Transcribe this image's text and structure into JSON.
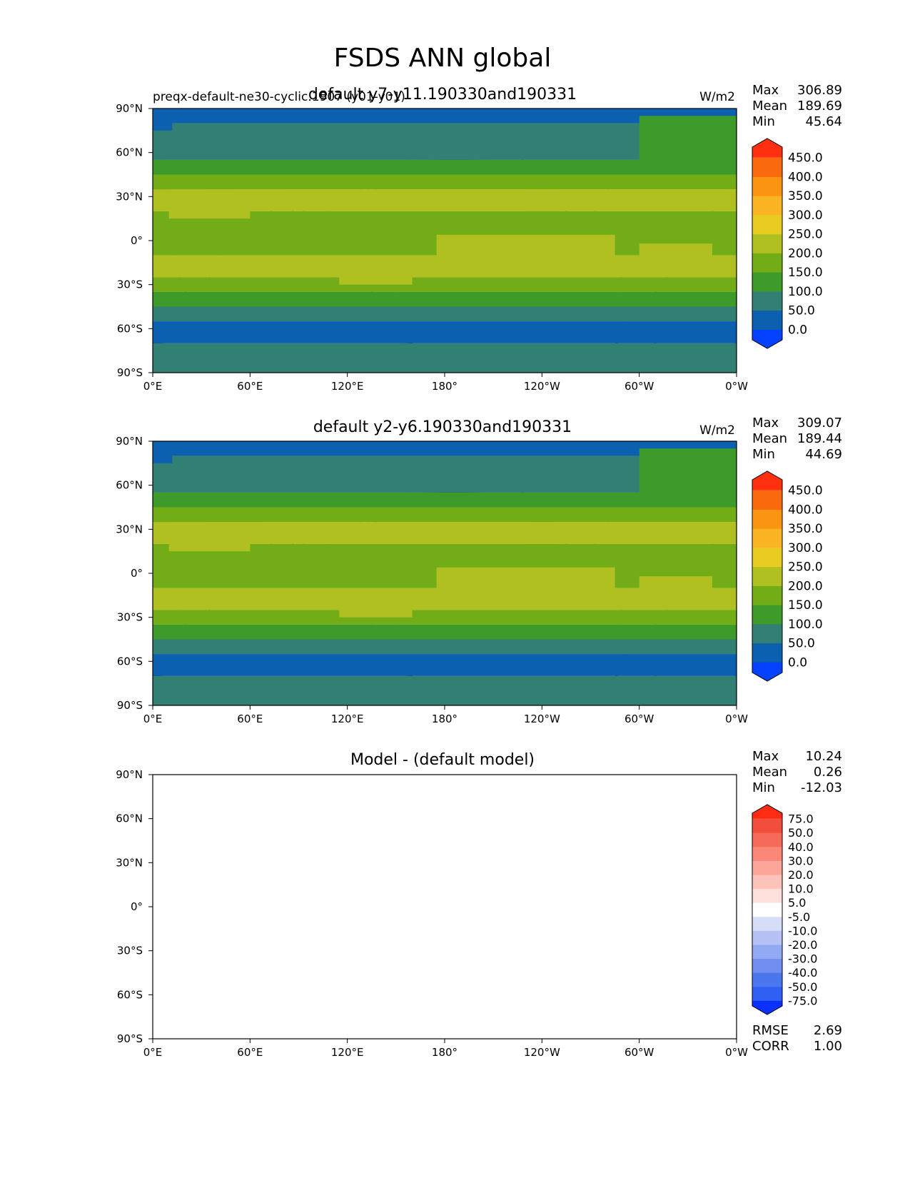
{
  "figure_title": "FSDS ANN global",
  "colors": {
    "abs_levels": [
      "#0542ff",
      "#0c60b0",
      "#327f74",
      "#3e9a2a",
      "#72ad18",
      "#b0c020",
      "#e8cc22",
      "#fbb424",
      "#fb9511",
      "#f86a0c",
      "#ff3010"
    ],
    "diff_levels": [
      "#0a31ff",
      "#2f5ff3",
      "#4a77ee",
      "#6f8ef0",
      "#93a8f2",
      "#b6c2f4",
      "#d6ddf8",
      "#ffffff",
      "#fde0dc",
      "#fdc3bb",
      "#fca699",
      "#fa8778",
      "#f66a5a",
      "#f14e3c",
      "#ff2b12"
    ]
  },
  "axes": {
    "lon_ticks": [
      "0°E",
      "60°E",
      "120°E",
      "180°",
      "120°W",
      "60°W",
      "0°W"
    ],
    "lat_ticks": [
      "90°N",
      "60°N",
      "30°N",
      "0°",
      "30°S",
      "60°S",
      "90°S"
    ]
  },
  "panels": [
    {
      "left_title": "preqx-default-ne30-cyclic.1907 (y01-y01)",
      "title": "default y7-y11.190330and190331",
      "units": "W/m2",
      "stats": [
        {
          "label": "Max",
          "value": "306.89"
        },
        {
          "label": "Mean",
          "value": "189.69"
        },
        {
          "label": "Min",
          "value": "45.64"
        }
      ],
      "colorbar_labels": [
        "450.0",
        "400.0",
        "350.0",
        "300.0",
        "250.0",
        "200.0",
        "150.0",
        "100.0",
        "50.0",
        "0.0"
      ]
    },
    {
      "title": "default y2-y6.190330and190331",
      "units": "W/m2",
      "stats": [
        {
          "label": "Max",
          "value": "309.07"
        },
        {
          "label": "Mean",
          "value": "189.44"
        },
        {
          "label": "Min",
          "value": "44.69"
        }
      ],
      "colorbar_labels": [
        "450.0",
        "400.0",
        "350.0",
        "300.0",
        "250.0",
        "200.0",
        "150.0",
        "100.0",
        "50.0",
        "0.0"
      ]
    },
    {
      "title": "Model - (default model)",
      "stats": [
        {
          "label": "Max",
          "value": "10.24"
        },
        {
          "label": "Mean",
          "value": "0.26"
        },
        {
          "label": "Min",
          "value": "-12.03"
        }
      ],
      "colorbar_labels": [
        "75.0",
        "50.0",
        "40.0",
        "30.0",
        "20.0",
        "10.0",
        "5.0",
        "-5.0",
        "-10.0",
        "-20.0",
        "-30.0",
        "-40.0",
        "-50.0",
        "-75.0"
      ],
      "extra_stats": [
        {
          "label": "RMSE",
          "value": "2.69"
        },
        {
          "label": "CORR",
          "value": "1.00"
        }
      ]
    }
  ],
  "chart_data": {
    "type": "heatmap",
    "variable": "FSDS",
    "season": "ANN",
    "region": "global",
    "xlim": [
      0,
      360
    ],
    "ylim": [
      -90,
      90
    ],
    "abs_levels": [
      0,
      50,
      100,
      150,
      200,
      250,
      300,
      350,
      400,
      450
    ],
    "diff_levels": [
      -75,
      -50,
      -40,
      -30,
      -20,
      -10,
      -5,
      5,
      10,
      20,
      30,
      40,
      50,
      75
    ],
    "zonal_mean_band_levels_test": [
      {
        "lat": [
          80,
          90
        ],
        "level": 50
      },
      {
        "lat": [
          55,
          80
        ],
        "level": 100
      },
      {
        "lat": [
          45,
          55
        ],
        "level": 150
      },
      {
        "lat": [
          35,
          45
        ],
        "level": 200
      },
      {
        "lat": [
          20,
          35
        ],
        "level": 250
      },
      {
        "lat": [
          -10,
          20
        ],
        "level": 200
      },
      {
        "lat": [
          -25,
          -10
        ],
        "level": 250
      },
      {
        "lat": [
          -35,
          -25
        ],
        "level": 200
      },
      {
        "lat": [
          -45,
          -35
        ],
        "level": 150
      },
      {
        "lat": [
          -55,
          -45
        ],
        "level": 100
      },
      {
        "lat": [
          -70,
          -55
        ],
        "level": 50
      },
      {
        "lat": [
          -90,
          -70
        ],
        "level": 100
      }
    ]
  }
}
